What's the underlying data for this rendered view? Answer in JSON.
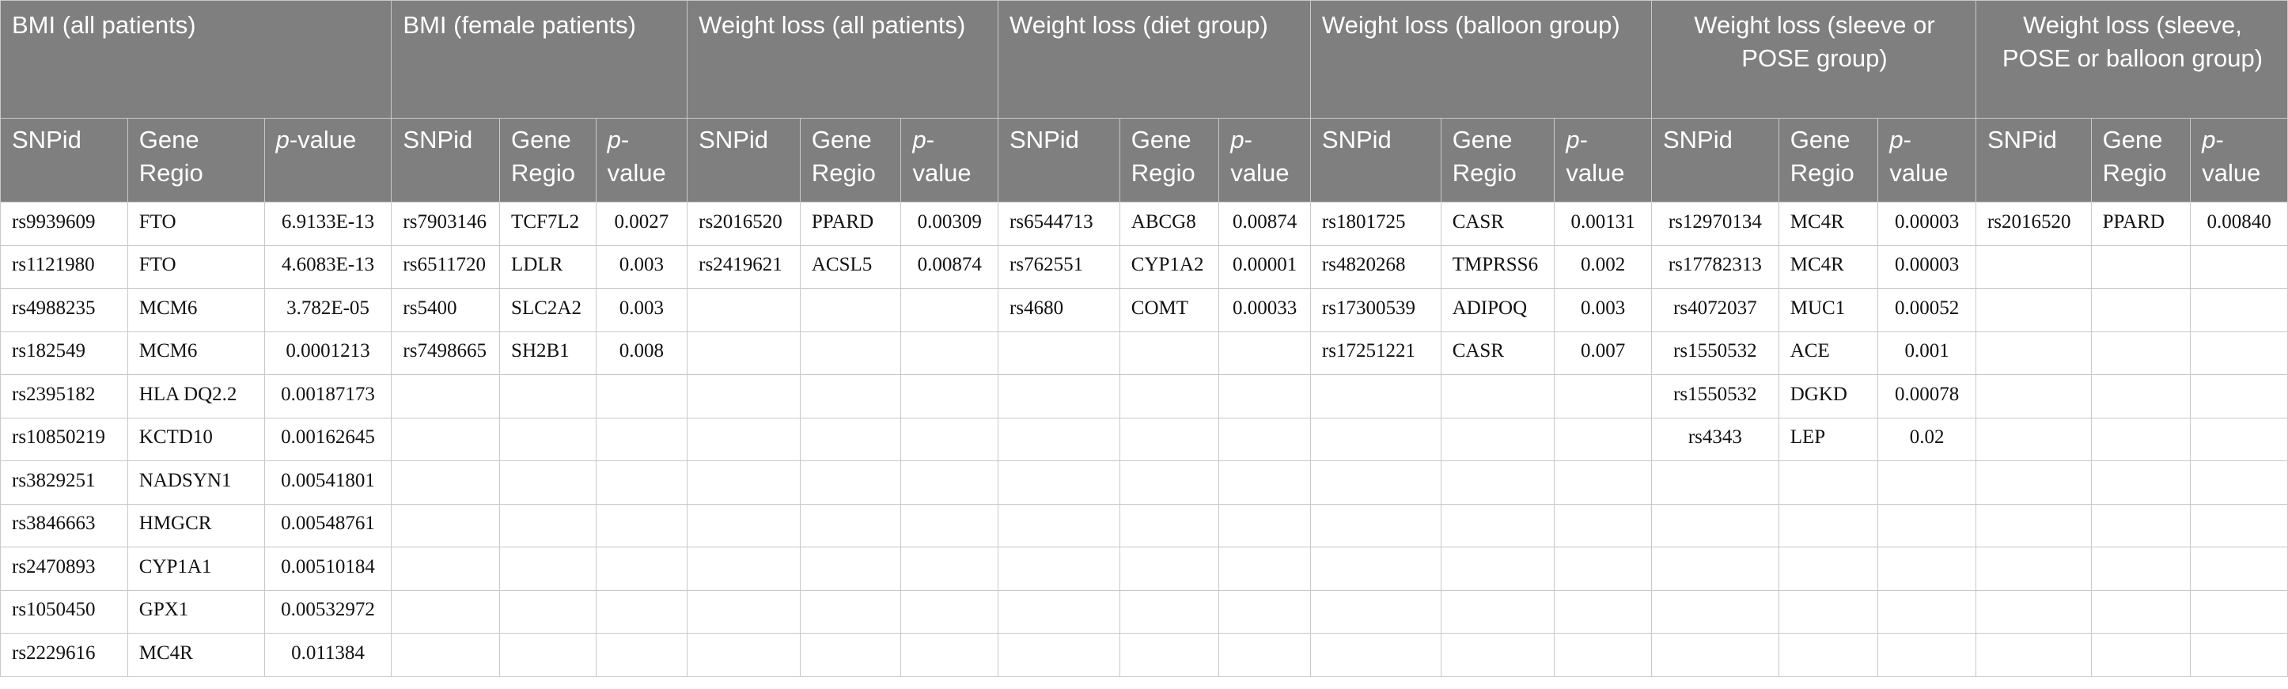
{
  "groups": [
    "BMI (all patients)",
    "BMI (female patients)",
    "Weight loss (all patients)",
    "Weight loss (diet group)",
    "Weight loss (balloon group)",
    "Weight loss (sleeve or POSE group)",
    "Weight loss (sleeve, POSE or balloon group)"
  ],
  "subheaders": {
    "snpid": "SNPid",
    "gene": "Gene Regio",
    "p_italic": "p",
    "p_rest": "-value"
  },
  "rows": [
    [
      "rs9939609",
      "FTO",
      "6.9133E-13",
      "rs7903146",
      "TCF7L2",
      "0.0027",
      "rs2016520",
      "PPARD",
      "0.00309",
      "rs6544713",
      "ABCG8",
      "0.00874",
      "rs1801725",
      "CASR",
      "0.00131",
      "rs12970134",
      "MC4R",
      "0.00003",
      "rs2016520",
      "PPARD",
      "0.00840"
    ],
    [
      "rs1121980",
      "FTO",
      "4.6083E-13",
      "rs6511720",
      "LDLR",
      "0.003",
      "rs2419621",
      "ACSL5",
      "0.00874",
      "rs762551",
      "CYP1A2",
      "0.00001",
      "rs4820268",
      "TMPRSS6",
      "0.002",
      "rs17782313",
      "MC4R",
      "0.00003",
      "",
      "",
      ""
    ],
    [
      "rs4988235",
      "MCM6",
      "3.782E-05",
      "rs5400",
      "SLC2A2",
      "0.003",
      "",
      "",
      "",
      "rs4680",
      "COMT",
      "0.00033",
      "rs17300539",
      "ADIPOQ",
      "0.003",
      "rs4072037",
      "MUC1",
      "0.00052",
      "",
      "",
      ""
    ],
    [
      "rs182549",
      "MCM6",
      "0.0001213",
      "rs7498665",
      "SH2B1",
      "0.008",
      "",
      "",
      "",
      "",
      "",
      "",
      "rs17251221",
      "CASR",
      "0.007",
      "rs1550532",
      "ACE",
      "0.001",
      "",
      "",
      ""
    ],
    [
      "rs2395182",
      "HLA DQ2.2",
      "0.00187173",
      "",
      "",
      "",
      "",
      "",
      "",
      "",
      "",
      "",
      "",
      "",
      "",
      "rs1550532",
      "DGKD",
      "0.00078",
      "",
      "",
      ""
    ],
    [
      "rs10850219",
      "KCTD10",
      "0.00162645",
      "",
      "",
      "",
      "",
      "",
      "",
      "",
      "",
      "",
      "",
      "",
      "",
      "rs4343",
      "LEP",
      "0.02",
      "",
      "",
      ""
    ],
    [
      "rs3829251",
      "NADSYN1",
      "0.00541801",
      "",
      "",
      "",
      "",
      "",
      "",
      "",
      "",
      "",
      "",
      "",
      "",
      "",
      "",
      "",
      "",
      "",
      ""
    ],
    [
      "rs3846663",
      "HMGCR",
      "0.00548761",
      "",
      "",
      "",
      "",
      "",
      "",
      "",
      "",
      "",
      "",
      "",
      "",
      "",
      "",
      "",
      "",
      "",
      ""
    ],
    [
      "rs2470893",
      "CYP1A1",
      "0.00510184",
      "",
      "",
      "",
      "",
      "",
      "",
      "",
      "",
      "",
      "",
      "",
      "",
      "",
      "",
      "",
      "",
      "",
      ""
    ],
    [
      "rs1050450",
      "GPX1",
      "0.00532972",
      "",
      "",
      "",
      "",
      "",
      "",
      "",
      "",
      "",
      "",
      "",
      "",
      "",
      "",
      "",
      "",
      "",
      ""
    ],
    [
      "rs2229616",
      "MC4R",
      "0.011384",
      "",
      "",
      "",
      "",
      "",
      "",
      "",
      "",
      "",
      "",
      "",
      "",
      "",
      "",
      "",
      "",
      "",
      ""
    ]
  ]
}
